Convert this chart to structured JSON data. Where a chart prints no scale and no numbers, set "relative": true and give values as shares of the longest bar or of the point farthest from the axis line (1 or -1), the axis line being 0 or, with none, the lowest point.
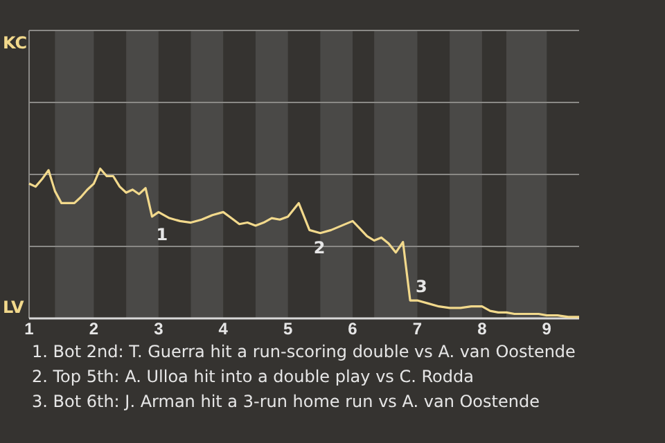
{
  "chart_data": {
    "type": "line",
    "relative": true,
    "x": [
      1,
      1.1,
      1.2,
      1.3,
      1.4,
      1.5,
      1.6,
      1.7,
      1.8,
      1.9,
      2,
      2.1,
      2.2,
      2.3,
      2.4,
      2.5,
      2.6,
      2.7,
      2.8,
      2.9,
      3,
      3.167,
      3.333,
      3.5,
      3.667,
      3.833,
      4,
      4.125,
      4.25,
      4.375,
      4.5,
      4.625,
      4.75,
      4.875,
      5,
      5.167,
      5.333,
      5.5,
      5.667,
      5.833,
      6,
      6.111,
      6.222,
      6.333,
      6.444,
      6.556,
      6.667,
      6.778,
      6.889,
      7,
      7.167,
      7.333,
      7.5,
      7.667,
      7.833,
      8,
      8.125,
      8.25,
      8.375,
      8.5,
      8.625,
      8.75,
      8.875,
      9,
      9.167,
      9.333,
      9.5
    ],
    "series": [
      {
        "color": "#f2d98c",
        "values": [
          0.9,
          0.88,
          0.93,
          0.99,
          0.85,
          0.77,
          0.77,
          0.77,
          0.81,
          0.86,
          0.9,
          1,
          0.95,
          0.95,
          0.88,
          0.84,
          0.86,
          0.83,
          0.87,
          0.68,
          0.71,
          0.67,
          0.65,
          0.64,
          0.66,
          0.69,
          0.71,
          0.67,
          0.63,
          0.64,
          0.62,
          0.64,
          0.67,
          0.66,
          0.68,
          0.77,
          0.59,
          0.57,
          0.59,
          0.62,
          0.65,
          0.6,
          0.55,
          0.52,
          0.54,
          0.5,
          0.44,
          0.51,
          0.12,
          0.12,
          0.1,
          0.08,
          0.07,
          0.07,
          0.08,
          0.08,
          0.05,
          0.04,
          0.04,
          0.03,
          0.03,
          0.03,
          0.03,
          0.02,
          0.02,
          0.01,
          0.01
        ]
      }
    ],
    "xlim": [
      1,
      9.5
    ],
    "xticks": [
      1,
      2,
      3,
      4,
      5,
      6,
      7,
      8,
      9
    ],
    "ref_lines": [
      {
        "axis": "y",
        "value": 0.481,
        "color": "#8a8986"
      },
      {
        "axis": "y",
        "value": 0.962,
        "color": "#8a8986"
      },
      {
        "axis": "y",
        "value": 1.442,
        "color": "#8a8986"
      },
      {
        "axis": "y",
        "value": 1.923,
        "color": "#8a8986"
      }
    ],
    "bands": [
      {
        "axis": "x",
        "from": 1.4,
        "to": 2,
        "color": "#4a4947"
      },
      {
        "axis": "x",
        "from": 2.5,
        "to": 3,
        "color": "#4a4947"
      },
      {
        "axis": "x",
        "from": 3.5,
        "to": 4,
        "color": "#4a4947"
      },
      {
        "axis": "x",
        "from": 4.5,
        "to": 5,
        "color": "#4a4947"
      },
      {
        "axis": "x",
        "from": 5.5,
        "to": 6,
        "color": "#4a4947"
      },
      {
        "axis": "x",
        "from": 6.333,
        "to": 7,
        "color": "#4a4947"
      },
      {
        "axis": "x",
        "from": 7.5,
        "to": 8,
        "color": "#4a4947"
      },
      {
        "axis": "x",
        "from": 8.375,
        "to": 9,
        "color": "#4a4947"
      }
    ],
    "annotations": [
      "KC",
      "LV",
      {
        "text": "1",
        "x": 2.9,
        "y": 0.68
      },
      {
        "text": "2",
        "x": 5.333,
        "y": 0.59
      },
      {
        "text": "3",
        "x": 6.889,
        "y": 0.12
      },
      "1. Bot 2nd: T. Guerra hit a run-scoring double vs A. van Oostende",
      "2. Top 5th: A. Ulloa hit into a double play vs C. Rodda",
      "3. Bot 6th: J. Arman hit a 3-run home run vs A. van Oostende"
    ]
  }
}
